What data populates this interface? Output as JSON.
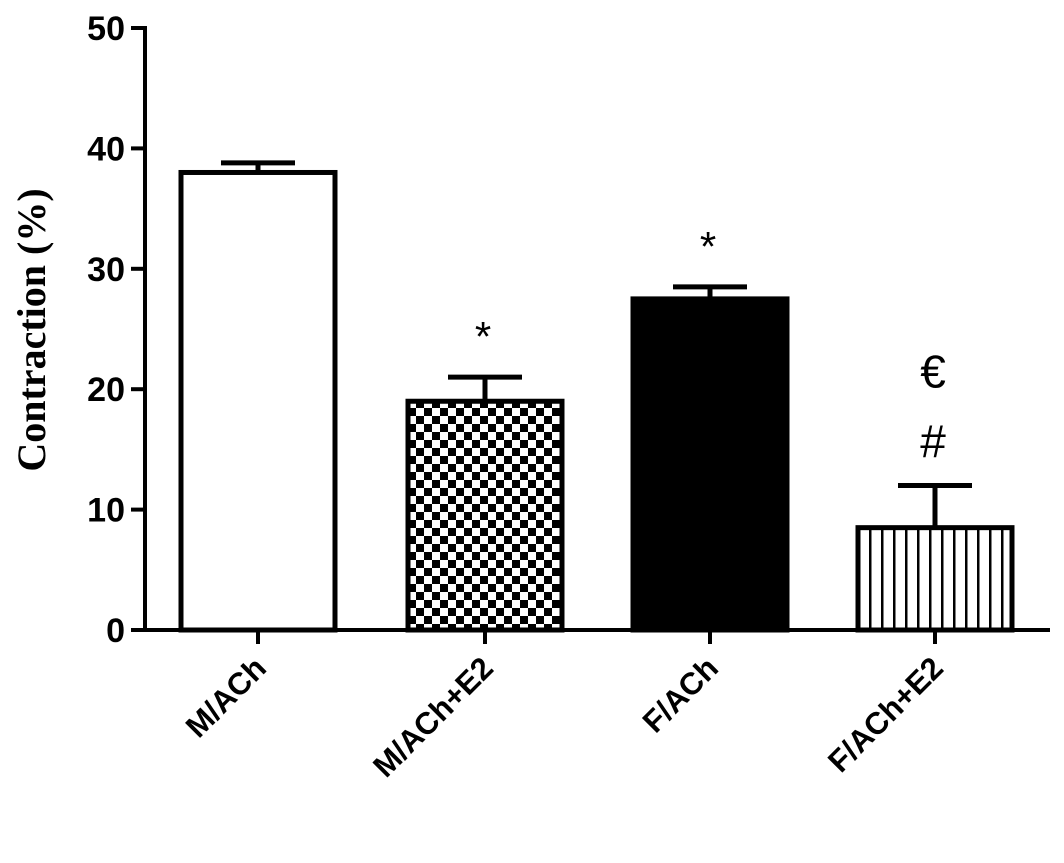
{
  "chart_data": {
    "type": "bar",
    "title": "",
    "xlabel": "",
    "ylabel": "Contraction (%)",
    "ylim": [
      0,
      50
    ],
    "yticks": [
      "0",
      "10",
      "20",
      "30",
      "40",
      "50"
    ],
    "categories": [
      "M/ACh",
      "M/ACh+E2",
      "F/ACh",
      "F/ACh+E2"
    ],
    "values": [
      38,
      19,
      27.5,
      8.5
    ],
    "errors": [
      0.8,
      2,
      1,
      3.5
    ],
    "patterns": [
      "white",
      "checkerboard",
      "black",
      "vertical-stripes"
    ],
    "annotations": [
      [
        "",
        ""
      ],
      [
        "*",
        ""
      ],
      [
        "*",
        ""
      ],
      [
        "#",
        "€"
      ]
    ],
    "grid": false,
    "legend": "none"
  }
}
